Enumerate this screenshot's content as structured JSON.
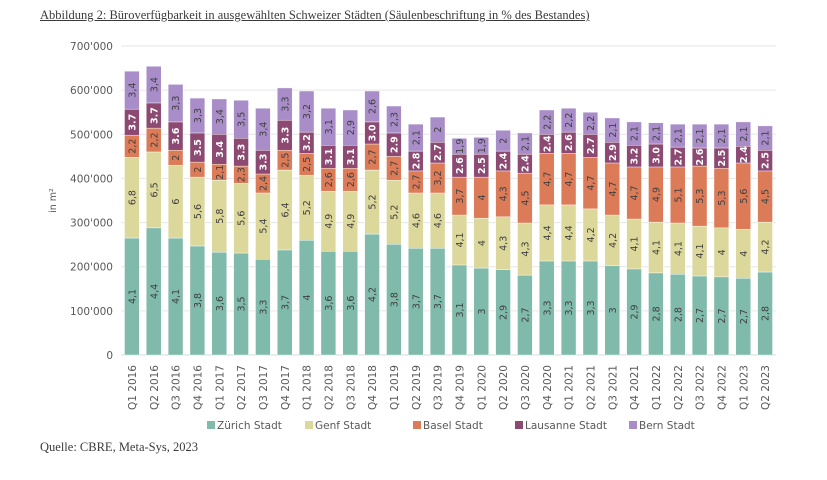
{
  "figure": {
    "title": "Abbildung 2: Büroverfügbarkeit in ausgewählten Schweizer Städten (Säulenbeschriftung in % des Bestandes)",
    "source": "Quelle: CBRE, Meta-Sys, 2023"
  },
  "chart_data": {
    "type": "bar",
    "stacked": true,
    "title": "Büroverfügbarkeit in ausgewählten Schweizer Städten",
    "xlabel": "",
    "ylabel": "in m²",
    "ylim": [
      0,
      700000
    ],
    "yticks": [
      0,
      100000,
      200000,
      300000,
      400000,
      500000,
      600000,
      700000
    ],
    "ytick_labels": [
      "0",
      "100'000",
      "200'000",
      "300'000",
      "400'000",
      "500'000",
      "600'000",
      "700'000"
    ],
    "grid": true,
    "legend_position": "bottom",
    "categories": [
      "Q1 2016",
      "Q2 2016",
      "Q3 2016",
      "Q4 2016",
      "Q1 2017",
      "Q2 2017",
      "Q3 2017",
      "Q4 2017",
      "Q1 2018",
      "Q2 2018",
      "Q3 2018",
      "Q4 2018",
      "Q1 2019",
      "Q2 2019",
      "Q3 2019",
      "Q4 2019",
      "Q1 2020",
      "Q2 2020",
      "Q3 2020",
      "Q4 2020",
      "Q1 2021",
      "Q2 2021",
      "Q3 2021",
      "Q4 2021",
      "Q1 2022",
      "Q2 2022",
      "Q3 2022",
      "Q4 2022",
      "Q1 2023",
      "Q2 2023"
    ],
    "series": [
      {
        "name": "Zürich Stadt",
        "color": "#7fbaaa",
        "label_style": "normal",
        "values": [
          265000,
          288000,
          265000,
          247000,
          233000,
          231000,
          217000,
          238000,
          260000,
          235000,
          235000,
          274000,
          251000,
          242000,
          242000,
          204000,
          197000,
          193000,
          181000,
          213000,
          213000,
          213000,
          202000,
          195000,
          186000,
          183000,
          179000,
          177000,
          174000,
          188000
        ],
        "labels": [
          "4,1",
          "4,4",
          "4,1",
          "3,8",
          "3,6",
          "3,5",
          "3,3",
          "3,7",
          "4",
          "3,6",
          "3,6",
          "4,2",
          "3,8",
          "3,7",
          "3,7",
          "3,1",
          "3",
          "2,9",
          "2,7",
          "3,3",
          "3,3",
          "3,3",
          "3",
          "2,9",
          "2,8",
          "2,8",
          "2,7",
          "2,7",
          "2,7",
          "2,8"
        ]
      },
      {
        "name": "Genf Stadt",
        "color": "#dcd89b",
        "label_style": "normal",
        "values": [
          183000,
          172000,
          165000,
          156000,
          163000,
          158000,
          150000,
          181000,
          147000,
          136000,
          136000,
          145000,
          145000,
          125000,
          125000,
          113000,
          113000,
          120000,
          118000,
          127000,
          127000,
          118000,
          115000,
          113000,
          115000,
          116000,
          113000,
          111000,
          111000,
          113000
        ],
        "labels": [
          "6,8",
          "6,5",
          "6",
          "5,6",
          "5,8",
          "5,6",
          "5,4",
          "6,4",
          "5,2",
          "4,9",
          "4,9",
          "5,2",
          "5,2",
          "4,6",
          "4,6",
          "4,1",
          "4",
          "4,3",
          "4,3",
          "4,4",
          "4,4",
          "4,2",
          "4,2",
          "4,1",
          "4,1",
          "4,1",
          "4,1",
          "4",
          "4",
          "4,2"
        ]
      },
      {
        "name": "Basel Stadt",
        "color": "#dc7b58",
        "label_style": "normal",
        "values": [
          50000,
          54000,
          34000,
          34000,
          36000,
          39000,
          43000,
          45000,
          50000,
          52000,
          52000,
          59000,
          54000,
          50000,
          68000,
          86000,
          93000,
          104000,
          113000,
          117000,
          117000,
          117000,
          118000,
          118000,
          125000,
          127000,
          136000,
          135000,
          150000,
          116000
        ],
        "labels": [
          "2,2",
          "2,2",
          "2",
          "2",
          "2,1",
          "2,3",
          "2,4",
          "2,5",
          "2,5",
          "2,6",
          "2,6",
          "2,7",
          "2,7",
          "2,7",
          "3,2",
          "3,7",
          "4",
          "4,3",
          "4,5",
          "4,7",
          "4,7",
          "4,7",
          "4,7",
          "4,7",
          "4,9",
          "5,1",
          "5,3",
          "5,3",
          "5,6",
          "4,5"
        ]
      },
      {
        "name": "Lausanne Stadt",
        "color": "#8c4a73",
        "label_style": "bold",
        "values": [
          59000,
          57000,
          64000,
          66000,
          68000,
          63000,
          54000,
          68000,
          48000,
          52000,
          52000,
          50000,
          53000,
          45000,
          47000,
          52000,
          52000,
          45000,
          43000,
          43000,
          48000,
          52000,
          47000,
          49000,
          52000,
          45000,
          41000,
          46000,
          38000,
          47000
        ],
        "labels": [
          "3.7",
          "3.7",
          "3.6",
          "3.5",
          "3.4",
          "3.3",
          "3.3",
          "3.3",
          "3.2",
          "3.1",
          "3.1",
          "3.0",
          "2.9",
          "2.8",
          "2.7",
          "2.6",
          "2.5",
          "2.4",
          "2.4",
          "2.4",
          "2.6",
          "2.7",
          "2.9",
          "3.2",
          "3.0",
          "2.7",
          "2.6",
          "2.5",
          "2.4",
          "2.5"
        ]
      },
      {
        "name": "Bern Stadt",
        "color": "#a88dc9",
        "label_style": "normal",
        "values": [
          86000,
          83000,
          85000,
          79000,
          80000,
          86000,
          95000,
          73000,
          93000,
          84000,
          80000,
          70000,
          61000,
          61000,
          57000,
          36000,
          38000,
          47000,
          48000,
          55000,
          54000,
          50000,
          55000,
          53000,
          48000,
          52000,
          54000,
          54000,
          55000,
          55000
        ],
        "labels": [
          "3,4",
          "3,4",
          "3,3",
          "3,3",
          "3,4",
          "3,5",
          "3,4",
          "3,3",
          "3,2",
          "3,1",
          "2,9",
          "2,6",
          "2,3",
          "2,1",
          "2",
          "1,9",
          "1,9",
          "2",
          "2,1",
          "2,2",
          "2,2",
          "2,2",
          "2,1",
          "2,1",
          "2,1",
          "2,1",
          "2,1",
          "2,1",
          "2,1",
          "2,1"
        ]
      }
    ]
  }
}
